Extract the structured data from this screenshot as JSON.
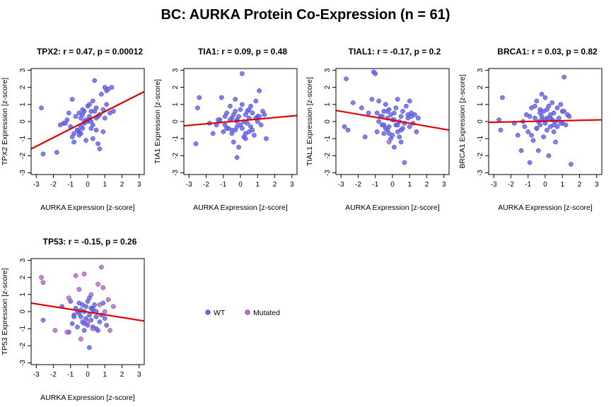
{
  "figure": {
    "title": "BC: AURKA Protein Co-Expression (n = 61)",
    "xlabel": "AURKA Expression [z-score]"
  },
  "legend": {
    "items": [
      {
        "label": "WT",
        "color": "#6666ff"
      },
      {
        "label": "Mutated",
        "color": "#cc66cc"
      }
    ]
  },
  "chart_data": [
    {
      "type": "scatter",
      "title": "TPX2: r = 0.47, p = 0.00012",
      "xlabel": "AURKA Expression [z-score]",
      "ylabel": "TPX2 Expression [z-score]",
      "xlim": [
        -3.3,
        3.3
      ],
      "ylim": [
        -3.1,
        3.1
      ],
      "xticks": [
        -3,
        -2,
        -1,
        0,
        1,
        2,
        3
      ],
      "yticks": [
        -3,
        -2,
        -1,
        0,
        1,
        2,
        3
      ],
      "fit_line": {
        "x": [
          -3.3,
          3.3
        ],
        "y": [
          -1.6,
          1.75
        ],
        "color": "#e00000"
      },
      "series": [
        {
          "name": "WT",
          "color": "#6666ff",
          "x": [
            -2.6,
            -2.7,
            -1.8,
            -1.6,
            -1.4,
            -1.2,
            -1.1,
            -1.0,
            -0.9,
            -0.8,
            -0.7,
            -0.6,
            -0.5,
            -0.5,
            -0.4,
            -0.4,
            -0.3,
            -0.3,
            -0.2,
            -0.2,
            -0.1,
            -0.1,
            0.0,
            0.0,
            0.1,
            0.1,
            0.2,
            0.2,
            0.3,
            0.3,
            0.4,
            0.4,
            0.5,
            0.5,
            0.6,
            0.6,
            0.7,
            0.8,
            0.9,
            1.0,
            1.0,
            1.1,
            1.2,
            1.3,
            1.4,
            1.5,
            -0.5,
            -0.6,
            -0.2,
            0.1,
            0.5,
            -0.8,
            -0.3,
            0.3,
            0.9,
            -1.3,
            -0.9,
            0.7,
            1.1,
            -0.4,
            0.2
          ],
          "y": [
            -1.9,
            0.8,
            -1.8,
            -0.2,
            -0.1,
            0.1,
            0.5,
            -0.3,
            1.3,
            -0.7,
            0.3,
            -0.5,
            0.5,
            -0.6,
            0.2,
            -0.7,
            -0.4,
            0.4,
            0.6,
            -0.1,
            0.1,
            -1.1,
            0.0,
            0.9,
            0.3,
            1.0,
            -0.4,
            0.6,
            1.2,
            -1.0,
            2.4,
            0.6,
            0.8,
            -0.5,
            0.3,
            -1.3,
            -1.6,
            1.6,
            0.7,
            2.0,
            0.2,
            1.8,
            1.9,
            0.5,
            2.0,
            0.6,
            -0.8,
            -0.5,
            0.0,
            0.1,
            0.2,
            -1.2,
            0.7,
            -0.2,
            -0.6,
            -0.1,
            -0.9,
            0.4,
            1.0,
            -0.3,
            0.0
          ]
        }
      ]
    },
    {
      "type": "scatter",
      "title": "TIA1: r = 0.09, p = 0.48",
      "xlabel": "AURKA Expression [z-score]",
      "ylabel": "TIA1 Expression [z-score]",
      "xlim": [
        -3.3,
        3.3
      ],
      "ylim": [
        -3.1,
        3.1
      ],
      "xticks": [
        -3,
        -2,
        -1,
        0,
        1,
        2,
        3
      ],
      "yticks": [
        -3,
        -2,
        -1,
        0,
        1,
        2,
        3
      ],
      "fit_line": {
        "x": [
          -3.3,
          3.3
        ],
        "y": [
          -0.25,
          0.35
        ],
        "color": "#e00000"
      },
      "series": [
        {
          "name": "WT",
          "color": "#6666ff",
          "x": [
            -2.6,
            -2.5,
            -2.4,
            -1.8,
            -1.6,
            -1.4,
            -1.2,
            -1.1,
            -1.0,
            -0.9,
            -0.8,
            -0.7,
            -0.6,
            -0.5,
            -0.5,
            -0.4,
            -0.4,
            -0.3,
            -0.3,
            -0.2,
            -0.2,
            -0.1,
            -0.1,
            0.0,
            0.0,
            0.1,
            0.1,
            0.2,
            0.2,
            0.3,
            0.3,
            0.4,
            0.4,
            0.5,
            0.5,
            0.6,
            0.6,
            0.7,
            0.8,
            0.9,
            1.0,
            1.0,
            1.1,
            1.2,
            1.3,
            1.4,
            1.5,
            -0.5,
            -0.6,
            -0.2,
            0.1,
            0.5,
            -0.8,
            -0.3,
            0.3,
            0.9,
            -1.3,
            -0.9,
            0.7,
            1.1,
            -0.2
          ],
          "y": [
            -1.3,
            0.8,
            1.4,
            -0.1,
            -0.7,
            -0.2,
            0.1,
            1.4,
            -0.6,
            0.3,
            0.5,
            -0.4,
            0.9,
            -0.7,
            0.2,
            -1.2,
            0.4,
            -0.5,
            0.6,
            -0.3,
            0.1,
            -1.5,
            0.3,
            -0.2,
            0.7,
            -0.4,
            2.8,
            0.0,
            -0.9,
            0.4,
            -1.0,
            0.6,
            -0.1,
            0.2,
            -0.6,
            0.9,
            -0.3,
            0.5,
            -0.8,
            1.2,
            0.0,
            0.3,
            1.8,
            -0.2,
            0.6,
            0.4,
            -1.0,
            -0.5,
            0.1,
            -2.1,
            1.0,
            0.7,
            -0.4,
            1.3,
            -0.7,
            0.2,
            0.1,
            -0.2,
            -0.5,
            0.3,
            0.0
          ]
        }
      ]
    },
    {
      "type": "scatter",
      "title": "TIAL1: r = -0.17, p = 0.2",
      "xlabel": "AURKA Expression [z-score]",
      "ylabel": "TIAL1 Expression [z-score]",
      "xlim": [
        -3.3,
        3.3
      ],
      "ylim": [
        -3.1,
        3.1
      ],
      "xticks": [
        -3,
        -2,
        -1,
        0,
        1,
        2,
        3
      ],
      "yticks": [
        -3,
        -2,
        -1,
        0,
        1,
        2,
        3
      ],
      "fit_line": {
        "x": [
          -3.3,
          3.3
        ],
        "y": [
          0.65,
          -0.5
        ],
        "color": "#e00000"
      },
      "series": [
        {
          "name": "WT",
          "color": "#6666ff",
          "x": [
            -2.8,
            -2.7,
            -2.6,
            -2.3,
            -1.8,
            -1.6,
            -1.4,
            -1.2,
            -1.1,
            -1.0,
            -0.9,
            -0.8,
            -0.7,
            -0.6,
            -0.5,
            -0.5,
            -0.4,
            -0.4,
            -0.3,
            -0.3,
            -0.2,
            -0.2,
            -0.1,
            -0.1,
            0.0,
            0.0,
            0.1,
            0.1,
            0.2,
            0.2,
            0.3,
            0.3,
            0.4,
            0.4,
            0.5,
            0.5,
            0.6,
            0.6,
            0.7,
            0.8,
            0.9,
            1.0,
            1.0,
            1.1,
            1.2,
            1.3,
            1.4,
            1.5,
            -0.5,
            -0.6,
            -0.2,
            0.1,
            0.5,
            -0.8,
            -0.3,
            0.3,
            0.9,
            -0.9,
            0.7,
            1.1
          ],
          "y": [
            -0.3,
            2.5,
            -0.5,
            1.1,
            0.8,
            -0.9,
            0.5,
            1.3,
            2.9,
            2.8,
            -0.6,
            1.2,
            0.3,
            -0.2,
            0.6,
            -0.7,
            1.0,
            -0.4,
            0.2,
            -0.5,
            0.7,
            -0.3,
            0.4,
            -1.0,
            0.1,
            -0.8,
            0.5,
            -1.5,
            0.8,
            -0.2,
            1.3,
            -0.6,
            0.0,
            -0.9,
            0.3,
            -1.2,
            0.6,
            -0.4,
            -2.4,
            0.9,
            0.2,
            -0.3,
            1.2,
            0.5,
            -0.1,
            0.4,
            -0.6,
            0.2,
            -0.2,
            0.3,
            -0.7,
            0.1,
            -0.5,
            0.0,
            0.6,
            -0.2,
            0.4,
            0.5,
            -0.1,
            0.3
          ]
        },
        {
          "name": "Mutated",
          "color": "#cc66cc",
          "x": [
            -0.2
          ],
          "y": [
            -1.2
          ]
        }
      ]
    },
    {
      "type": "scatter",
      "title": "BRCA1: r = 0.03, p = 0.82",
      "xlabel": "AURKA Expression [z-score]",
      "ylabel": "BRCA1 Expression [z-score]",
      "xlim": [
        -3.3,
        3.3
      ],
      "ylim": [
        -3.1,
        3.1
      ],
      "xticks": [
        -3,
        -2,
        -1,
        0,
        1,
        2,
        3
      ],
      "yticks": [
        -3,
        -2,
        -1,
        0,
        1,
        2,
        3
      ],
      "fit_line": {
        "x": [
          -3.3,
          3.3
        ],
        "y": [
          -0.05,
          0.1
        ],
        "color": "#e00000"
      },
      "series": [
        {
          "name": "WT",
          "color": "#6666ff",
          "x": [
            -2.7,
            -2.6,
            -2.5,
            -1.8,
            -1.6,
            -1.4,
            -1.2,
            -1.1,
            -1.0,
            -0.9,
            -0.8,
            -0.7,
            -0.6,
            -0.5,
            -0.5,
            -0.4,
            -0.4,
            -0.3,
            -0.3,
            -0.2,
            -0.2,
            -0.1,
            -0.1,
            0.0,
            0.0,
            0.1,
            0.1,
            0.2,
            0.2,
            0.3,
            0.3,
            0.4,
            0.4,
            0.5,
            0.5,
            0.6,
            0.6,
            0.7,
            0.8,
            0.9,
            1.0,
            1.0,
            1.1,
            1.2,
            1.3,
            1.4,
            1.5,
            -0.5,
            -0.6,
            -0.2,
            0.1,
            0.5,
            -0.8,
            -0.3,
            0.3,
            0.9,
            -1.3,
            -0.9,
            0.7,
            1.1,
            0.0
          ],
          "y": [
            0.1,
            -0.5,
            1.4,
            -0.1,
            -0.8,
            -1.7,
            -0.3,
            0.4,
            -0.6,
            -2.4,
            0.8,
            -1.1,
            0.2,
            -0.4,
            1.2,
            -1.7,
            0.0,
            0.7,
            -0.2,
            1.6,
            0.3,
            -0.9,
            0.6,
            -0.1,
            1.4,
            0.2,
            -0.5,
            0.9,
            -2.0,
            0.4,
            -0.3,
            1.1,
            0.1,
            -0.6,
            0.5,
            0.0,
            -1.2,
            0.8,
            0.2,
            1.0,
            -0.1,
            0.6,
            2.6,
            -0.2,
            0.4,
            0.3,
            -2.5,
            -0.4,
            0.9,
            0.1,
            0.7,
            -0.2,
            -0.8,
            0.5,
            0.2,
            -0.1,
            0.0,
            0.3,
            -0.3,
            0.6,
            0.1
          ]
        }
      ]
    },
    {
      "type": "scatter",
      "title": "TP53: r = -0.15, p = 0.26",
      "xlabel": "AURKA Expression [z-score]",
      "ylabel": "TP53 Expression [z-score]",
      "xlim": [
        -3.3,
        3.3
      ],
      "ylim": [
        -3.1,
        3.1
      ],
      "xticks": [
        -3,
        -2,
        -1,
        0,
        1,
        2,
        3
      ],
      "yticks": [
        -3,
        -2,
        -1,
        0,
        1,
        2,
        3
      ],
      "fit_line": {
        "x": [
          -3.3,
          3.3
        ],
        "y": [
          0.5,
          -0.55
        ],
        "color": "#e00000"
      },
      "series": [
        {
          "name": "WT",
          "color": "#6666ff",
          "x": [
            -2.6,
            -1.5,
            -1.1,
            -1.0,
            -0.9,
            -0.8,
            -0.7,
            -0.6,
            -0.5,
            -0.4,
            -0.4,
            -0.3,
            -0.3,
            -0.2,
            -0.2,
            -0.1,
            -0.1,
            0.0,
            0.0,
            0.1,
            0.1,
            0.2,
            0.2,
            0.3,
            0.3,
            0.4,
            0.5,
            0.5,
            0.6,
            0.7,
            0.8,
            0.9,
            1.0,
            1.1,
            -0.5,
            -0.6,
            -0.2,
            0.1,
            0.5,
            -0.8,
            0.3
          ],
          "y": [
            -0.5,
            0.3,
            -1.2,
            0.6,
            -0.7,
            -0.2,
            0.2,
            -0.9,
            0.5,
            -0.3,
            0.1,
            -0.6,
            0.4,
            -1.1,
            0.0,
            -0.4,
            0.3,
            -0.8,
            0.6,
            -2.1,
            -0.2,
            0.2,
            -0.5,
            0.1,
            -0.9,
            0.4,
            -0.3,
            0.0,
            -1.1,
            -0.6,
            -0.2,
            0.5,
            -0.4,
            -0.8,
            -0.1,
            0.0,
            -0.7,
            0.8,
            -1.0,
            -0.3,
            0.2
          ]
        },
        {
          "name": "Mutated",
          "color": "#cc66cc",
          "x": [
            -2.7,
            -2.6,
            -1.9,
            -1.2,
            -1.1,
            -0.7,
            -0.5,
            -0.4,
            -0.2,
            0.0,
            0.2,
            0.3,
            0.6,
            0.7,
            0.8,
            0.9,
            1.0,
            1.2,
            1.3,
            1.5
          ],
          "y": [
            2.0,
            1.7,
            -1.1,
            -1.2,
            0.8,
            2.1,
            1.3,
            -1.6,
            2.2,
            -0.6,
            1.0,
            -1.0,
            1.6,
            0.4,
            2.6,
            1.4,
            0.0,
            0.7,
            -1.1,
            0.3
          ]
        }
      ]
    }
  ]
}
